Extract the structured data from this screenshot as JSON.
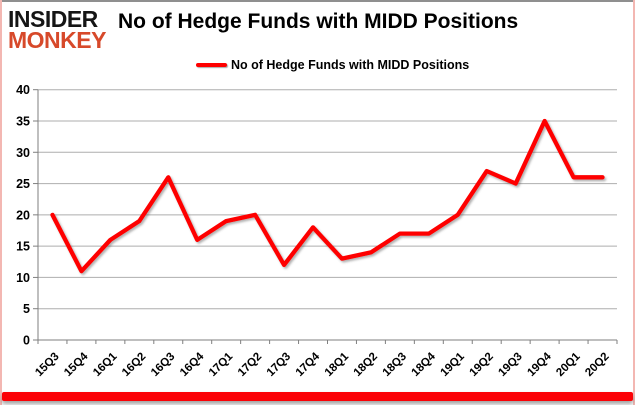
{
  "logo": {
    "line1": "INSIDER",
    "line2": "MONKEY"
  },
  "header": {
    "title": "No of Hedge Funds with MIDD Positions"
  },
  "legend": {
    "label": "No of Hedge Funds with MIDD Positions"
  },
  "colors": {
    "series": "#fe0000",
    "logo_accent": "#d7492a",
    "gridline": "#aeaeae",
    "axis": "#7f7f7f",
    "bottom_bar": "#fb0106",
    "side_border": "#f3b7b2"
  },
  "chart_data": {
    "type": "line",
    "title": "No of Hedge Funds with MIDD Positions",
    "categories": [
      "15Q3",
      "15Q4",
      "16Q1",
      "16Q2",
      "16Q3",
      "16Q4",
      "17Q1",
      "17Q2",
      "17Q3",
      "17Q4",
      "18Q1",
      "18Q2",
      "18Q3",
      "18Q4",
      "19Q1",
      "19Q2",
      "19Q3",
      "19Q4",
      "20Q1",
      "20Q2"
    ],
    "series": [
      {
        "name": "No of Hedge Funds with MIDD Positions",
        "values": [
          20,
          11,
          16,
          19,
          26,
          16,
          19,
          20,
          12,
          18,
          13,
          14,
          17,
          17,
          20,
          27,
          25,
          35,
          26,
          26
        ]
      }
    ],
    "ylim": [
      0,
      40
    ],
    "yticks": [
      0,
      5,
      10,
      15,
      20,
      25,
      30,
      35,
      40
    ],
    "grid": true,
    "legend_position": "top"
  }
}
